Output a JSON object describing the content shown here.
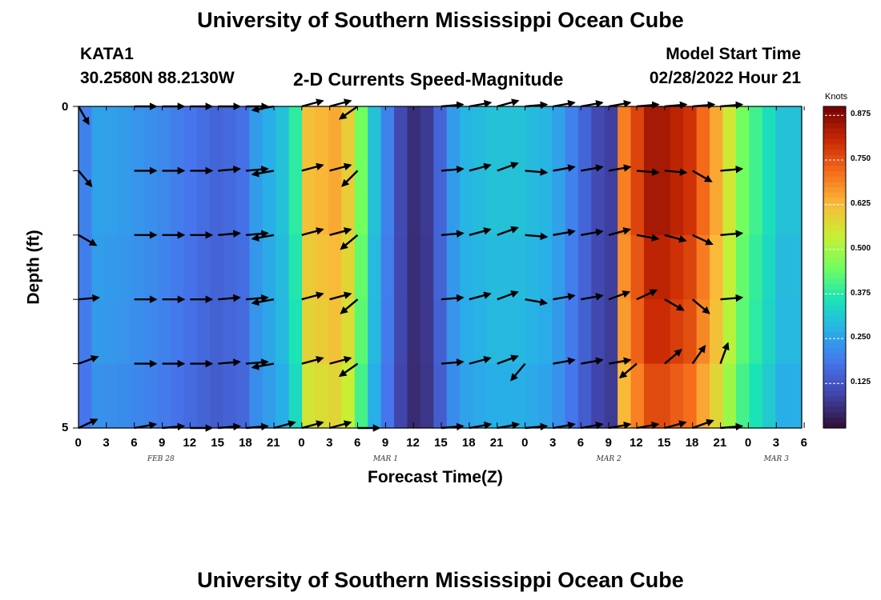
{
  "header": {
    "title": "University of Southern Mississippi Ocean Cube",
    "station": "KATA1",
    "coords": "30.2580N  88.2130W",
    "subtitle": "2-D Currents Speed-Magnitude",
    "model_label": "Model Start Time",
    "model_time": "02/28/2022 Hour 21"
  },
  "footer": {
    "title": "University of Southern Mississippi Ocean Cube"
  },
  "chart_data": {
    "type": "heatmap",
    "title": "2-D Currents Speed-Magnitude",
    "xlabel": "Forecast Time(Z)",
    "ylabel": "Depth (ft)",
    "ylim": [
      0,
      5
    ],
    "y_ticks": [
      "0",
      "5"
    ],
    "x_tick_labels": [
      "0",
      "3",
      "6",
      "9",
      "12",
      "15",
      "18",
      "21",
      "0",
      "3",
      "6",
      "9",
      "12",
      "15",
      "18",
      "21",
      "0",
      "3",
      "6",
      "9",
      "12",
      "15",
      "18",
      "21",
      "0",
      "3",
      "6"
    ],
    "date_labels": [
      {
        "text": "FEB 28",
        "tick": 3
      },
      {
        "text": "MAR 1",
        "tick": 11
      },
      {
        "text": "MAR 2",
        "tick": 19
      },
      {
        "text": "MAR 3",
        "tick": 25
      }
    ],
    "colorbar": {
      "label": "Knots",
      "min": 0.0,
      "max": 0.9,
      "ticks": [
        "0.125",
        "0.250",
        "0.375",
        "0.500",
        "0.625",
        "0.750",
        "0.875"
      ],
      "tick_values": [
        0.125,
        0.25,
        0.375,
        0.5,
        0.625,
        0.75,
        0.875
      ]
    },
    "depth_rows": 5,
    "time_steps": 55,
    "column_profile": [
      [
        0,
        0.2
      ],
      [
        2,
        0.25
      ],
      [
        6,
        0.24
      ],
      [
        12,
        0.21
      ],
      [
        16,
        0.18
      ],
      [
        20,
        0.15
      ],
      [
        24,
        0.17
      ],
      [
        26,
        0.24
      ],
      [
        30,
        0.3
      ],
      [
        32,
        0.38
      ],
      [
        34,
        0.62
      ],
      [
        38,
        0.65
      ],
      [
        40,
        0.6
      ],
      [
        42,
        0.45
      ],
      [
        44,
        0.3
      ],
      [
        46,
        0.2
      ],
      [
        48,
        0.1
      ],
      [
        50,
        0.05
      ],
      [
        52,
        0.07
      ],
      [
        54,
        0.15
      ],
      [
        56,
        0.24
      ],
      [
        58,
        0.28
      ],
      [
        62,
        0.3
      ],
      [
        66,
        0.3
      ],
      [
        70,
        0.28
      ],
      [
        72,
        0.25
      ],
      [
        74,
        0.2
      ],
      [
        76,
        0.15
      ],
      [
        78,
        0.1
      ],
      [
        80,
        0.08
      ],
      [
        81,
        0.3
      ],
      [
        82,
        0.7
      ],
      [
        86,
        0.85
      ],
      [
        88,
        0.85
      ],
      [
        92,
        0.8
      ],
      [
        96,
        0.65
      ],
      [
        100,
        0.45
      ],
      [
        104,
        0.35
      ],
      [
        106,
        0.3
      ],
      [
        108,
        0.3
      ]
    ],
    "row_factors": [
      1.0,
      1.0,
      0.97,
      0.95,
      0.9
    ],
    "vectors": [
      {
        "x": 0,
        "d": [
          [
            300,
            0.5
          ],
          [
            310,
            0.5
          ],
          [
            330,
            0.5
          ],
          [
            5,
            0.5
          ],
          [
            20,
            0.5
          ],
          [
            25,
            0.5
          ]
        ]
      },
      {
        "x": 6,
        "d": [
          [
            0,
            0.6
          ],
          [
            0,
            0.6
          ],
          [
            0,
            0.6
          ],
          [
            0,
            0.6
          ],
          [
            0,
            0.6
          ],
          [
            10,
            0.6
          ]
        ]
      },
      {
        "x": 9,
        "d": [
          [
            0,
            0.6
          ],
          [
            0,
            0.6
          ],
          [
            0,
            0.6
          ],
          [
            0,
            0.6
          ],
          [
            0,
            0.6
          ],
          [
            5,
            0.6
          ]
        ]
      },
      {
        "x": 12,
        "d": [
          [
            0,
            0.6
          ],
          [
            0,
            0.6
          ],
          [
            0,
            0.6
          ],
          [
            0,
            0.6
          ],
          [
            0,
            0.6
          ],
          [
            0,
            0.6
          ]
        ]
      },
      {
        "x": 15,
        "d": [
          [
            0,
            0.6
          ],
          [
            5,
            0.6
          ],
          [
            5,
            0.6
          ],
          [
            5,
            0.6
          ],
          [
            5,
            0.6
          ],
          [
            5,
            0.6
          ]
        ]
      },
      {
        "x": 18,
        "d": [
          [
            0,
            0.6
          ],
          [
            5,
            0.6
          ],
          [
            5,
            0.6
          ],
          [
            5,
            0.6
          ],
          [
            5,
            0.6
          ],
          [
            5,
            0.6
          ]
        ]
      },
      {
        "x": 21,
        "d": [
          [
            190,
            0.6
          ],
          [
            190,
            0.6
          ],
          [
            190,
            0.6
          ],
          [
            190,
            0.6
          ],
          [
            190,
            0.6
          ],
          [
            15,
            0.6
          ]
        ]
      },
      {
        "x": 24,
        "d": [
          [
            15,
            0.6
          ],
          [
            15,
            0.6
          ],
          [
            15,
            0.6
          ],
          [
            15,
            0.6
          ],
          [
            15,
            0.6
          ],
          [
            15,
            0.6
          ]
        ]
      },
      {
        "x": 27,
        "d": [
          [
            15,
            0.6
          ],
          [
            15,
            0.6
          ],
          [
            15,
            0.6
          ],
          [
            15,
            0.6
          ],
          [
            15,
            0.6
          ],
          [
            15,
            0.6
          ]
        ]
      },
      {
        "x": 30,
        "d": [
          [
            215,
            0.6
          ],
          [
            225,
            0.6
          ],
          [
            220,
            0.6
          ],
          [
            220,
            0.6
          ],
          [
            215,
            0.6
          ],
          [
            0,
            0.6
          ]
        ]
      },
      {
        "x": 39,
        "d": [
          [
            5,
            0.6
          ],
          [
            5,
            0.6
          ],
          [
            5,
            0.6
          ],
          [
            5,
            0.6
          ],
          [
            5,
            0.6
          ],
          [
            5,
            0.6
          ]
        ]
      },
      {
        "x": 42,
        "d": [
          [
            10,
            0.6
          ],
          [
            15,
            0.6
          ],
          [
            15,
            0.6
          ],
          [
            15,
            0.6
          ],
          [
            15,
            0.6
          ],
          [
            10,
            0.6
          ]
        ]
      },
      {
        "x": 45,
        "d": [
          [
            15,
            0.6
          ],
          [
            20,
            0.6
          ],
          [
            20,
            0.6
          ],
          [
            20,
            0.6
          ],
          [
            20,
            0.6
          ],
          [
            10,
            0.6
          ]
        ]
      },
      {
        "x": 48,
        "d": [
          [
            5,
            0.6
          ],
          [
            355,
            0.6
          ],
          [
            355,
            0.6
          ],
          [
            350,
            0.6
          ],
          [
            230,
            0.6
          ],
          [
            5,
            0.6
          ]
        ]
      },
      {
        "x": 51,
        "d": [
          [
            10,
            0.6
          ],
          [
            10,
            0.6
          ],
          [
            10,
            0.6
          ],
          [
            10,
            0.6
          ],
          [
            10,
            0.6
          ],
          [
            10,
            0.6
          ]
        ]
      },
      {
        "x": 54,
        "d": [
          [
            10,
            0.6
          ],
          [
            10,
            0.6
          ],
          [
            10,
            0.6
          ],
          [
            10,
            0.6
          ],
          [
            10,
            0.6
          ],
          [
            10,
            0.6
          ]
        ]
      },
      {
        "x": 57,
        "d": [
          [
            10,
            0.6
          ],
          [
            10,
            0.6
          ],
          [
            15,
            0.6
          ],
          [
            20,
            0.6
          ],
          [
            10,
            0.6
          ],
          [
            10,
            0.6
          ]
        ]
      },
      {
        "x": 60,
        "d": [
          [
            5,
            0.6
          ],
          [
            355,
            0.6
          ],
          [
            350,
            0.6
          ],
          [
            25,
            0.6
          ],
          [
            220,
            0.6
          ],
          [
            10,
            0.6
          ]
        ]
      },
      {
        "x": 63,
        "d": [
          [
            5,
            0.6
          ],
          [
            355,
            0.6
          ],
          [
            345,
            0.6
          ],
          [
            330,
            0.6
          ],
          [
            40,
            0.6
          ],
          [
            15,
            0.6
          ]
        ]
      },
      {
        "x": 66,
        "d": [
          [
            5,
            0.6
          ],
          [
            330,
            0.6
          ],
          [
            335,
            0.6
          ],
          [
            320,
            0.6
          ],
          [
            55,
            0.6
          ],
          [
            20,
            0.6
          ]
        ]
      },
      {
        "x": 69,
        "d": [
          [
            5,
            0.6
          ],
          [
            5,
            0.6
          ],
          [
            5,
            0.6
          ],
          [
            5,
            0.6
          ],
          [
            70,
            0.6
          ],
          [
            5,
            0.6
          ]
        ]
      }
    ]
  }
}
